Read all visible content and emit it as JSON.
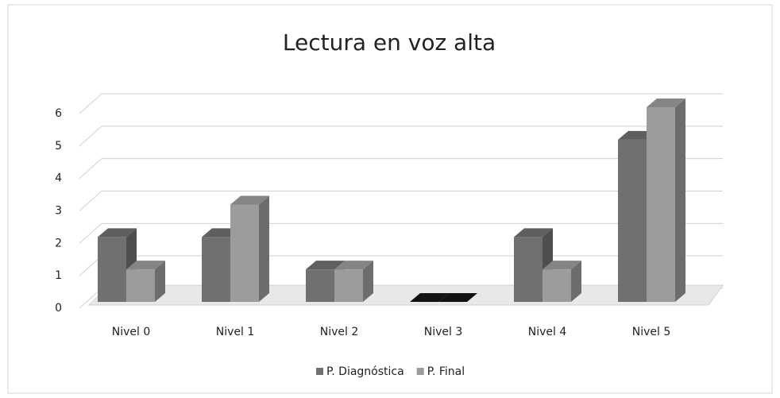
{
  "chart_data": {
    "type": "bar3d",
    "title": "Lectura en voz alta",
    "categories": [
      "Nivel 0",
      "Nivel 1",
      "Nivel 2",
      "Nivel 3",
      "Nivel 4",
      "Nivel 5"
    ],
    "series": [
      {
        "name": "P. Diagnóstica",
        "color": "#707070",
        "values": [
          2,
          2,
          1,
          0,
          2,
          5
        ]
      },
      {
        "name": "P. Final",
        "color": "#9c9c9c",
        "values": [
          1,
          3,
          1,
          0,
          1,
          6
        ]
      }
    ],
    "ylim": [
      0,
      6
    ],
    "yticks": [
      0,
      1,
      2,
      3,
      4,
      5,
      6
    ],
    "grid": true,
    "legend": "bottom"
  }
}
